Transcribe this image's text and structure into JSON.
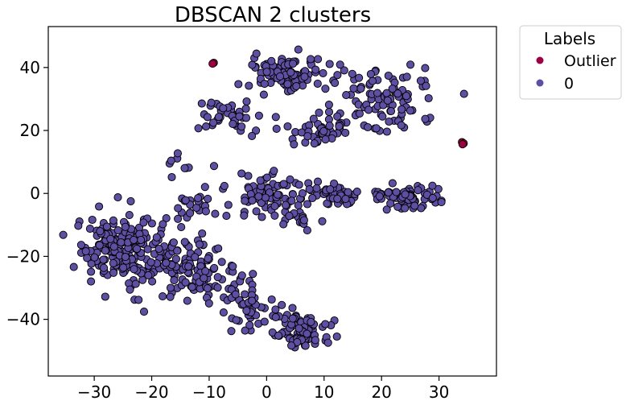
{
  "chart_data": {
    "type": "scatter",
    "title": "DBSCAN 2 clusters",
    "xlabel": "",
    "ylabel": "",
    "xlim": [
      -38,
      40
    ],
    "ylim": [
      -58,
      53
    ],
    "xticks": [
      -30,
      -20,
      -10,
      0,
      10,
      20,
      30
    ],
    "yticks": [
      -40,
      -20,
      0,
      20,
      40
    ],
    "xtick_labels": [
      "−30",
      "−20",
      "−10",
      "0",
      "10",
      "20",
      "30"
    ],
    "ytick_labels": [
      "−40",
      "−20",
      "0",
      "20",
      "40"
    ],
    "grid": false,
    "legend": {
      "title": "Labels",
      "placement": "outside-top-right",
      "entries": [
        "Outlier",
        "0"
      ]
    },
    "colors": {
      "Outlier": "#9e0142",
      "0": "#5e4fa2",
      "edge": "#000000"
    },
    "series": [
      {
        "name": "Outlier",
        "points": [
          [
            -9.2,
            41.5
          ],
          [
            -9.4,
            41.2
          ],
          [
            34,
            16.3
          ],
          [
            34.3,
            15.9
          ],
          [
            34.1,
            15.6
          ]
        ]
      },
      {
        "name": "0",
        "clusters": [
          {
            "cx": -25,
            "cy": -18,
            "sx": 6.5,
            "sy": 9,
            "n": 210
          },
          {
            "cx": -14,
            "cy": -22,
            "sx": 5,
            "sy": 8,
            "n": 90
          },
          {
            "cx": -7,
            "cy": -30,
            "sx": 4.5,
            "sy": 5,
            "n": 40
          },
          {
            "cx": -3,
            "cy": -38,
            "sx": 3.5,
            "sy": 5,
            "n": 35
          },
          {
            "cx": -12,
            "cy": -4,
            "sx": 3,
            "sy": 4,
            "n": 20
          },
          {
            "cx": 6,
            "cy": -44,
            "sx": 3.5,
            "sy": 4.5,
            "n": 90
          },
          {
            "cx": 0,
            "cy": -1,
            "sx": 6.5,
            "sy": 5,
            "n": 80
          },
          {
            "cx": 12,
            "cy": 0,
            "sx": 5,
            "sy": 3.5,
            "n": 55
          },
          {
            "cx": 25,
            "cy": -1,
            "sx": 5.5,
            "sy": 3,
            "n": 75
          },
          {
            "cx": 6,
            "cy": -8,
            "sx": 3,
            "sy": 3,
            "n": 15
          },
          {
            "cx": -6,
            "cy": 25,
            "sx": 5,
            "sy": 4.5,
            "n": 45
          },
          {
            "cx": 4,
            "cy": 38,
            "sx": 6.5,
            "sy": 5,
            "n": 95
          },
          {
            "cx": 20,
            "cy": 30,
            "sx": 8,
            "sy": 9,
            "n": 100
          },
          {
            "cx": 9,
            "cy": 19,
            "sx": 3.5,
            "sy": 3,
            "n": 40
          },
          {
            "cx": -15,
            "cy": 10,
            "sx": 2.5,
            "sy": 3,
            "n": 8
          }
        ]
      }
    ]
  }
}
